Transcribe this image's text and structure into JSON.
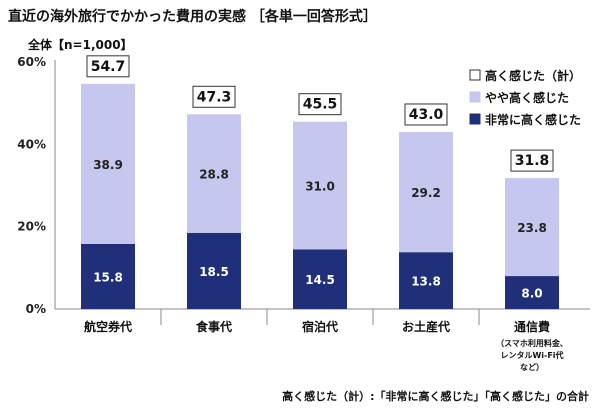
{
  "title": "直近の海外旅行でかかった費用の実感 ［各単一回答形式］",
  "subtitle": "全体【n=1,000】",
  "footnote": "高く感じた（計）:「非常に高く感じた」「高く感じた」の合計",
  "colors": {
    "dark": "#1f2f7a",
    "light": "#c5c7ee",
    "grid": "#bfbfbf"
  },
  "chart_data": {
    "type": "bar",
    "stacked": true,
    "categories": [
      "航空券代",
      "食事代",
      "宿泊代",
      "お土産代",
      "通信費"
    ],
    "category_notes": [
      "",
      "",
      "",
      "",
      "（スマホ利用料金、\nレンタルWi-Fi代\nなど）"
    ],
    "series": [
      {
        "name": "非常に高く感じた",
        "values": [
          15.8,
          18.5,
          14.5,
          13.8,
          8.0
        ]
      },
      {
        "name": "やや高く感じた",
        "values": [
          38.9,
          28.8,
          31.0,
          29.2,
          23.8
        ]
      }
    ],
    "totals": {
      "name": "高く感じた（計）",
      "values": [
        54.7,
        47.3,
        45.5,
        43.0,
        31.8
      ]
    },
    "yticks": [
      "0%",
      "20%",
      "40%",
      "60%"
    ],
    "ylim": [
      0,
      60
    ],
    "legend_position": "top-right",
    "grid": false
  }
}
